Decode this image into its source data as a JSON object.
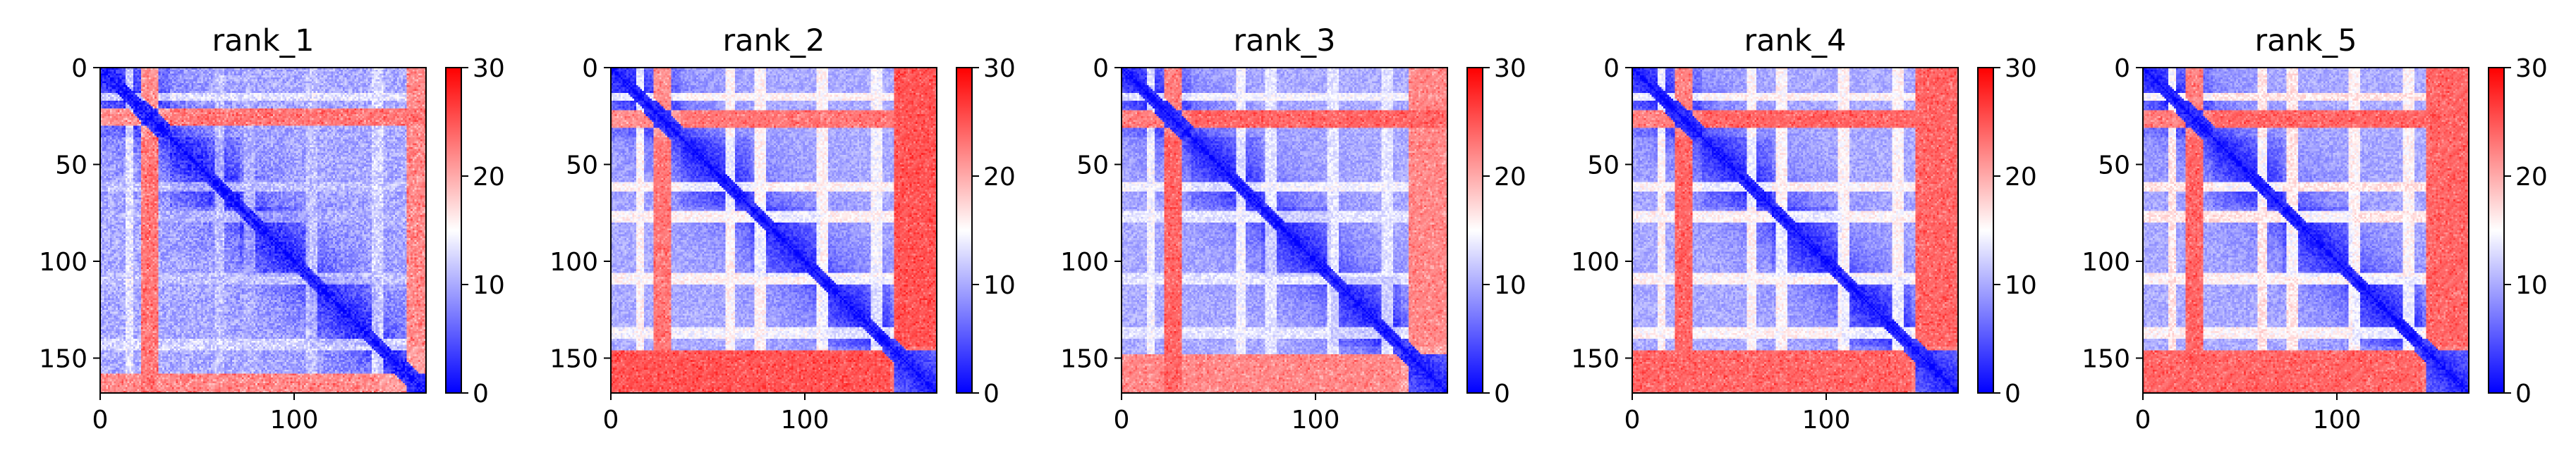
{
  "chart_data": [
    {
      "type": "heatmap",
      "title": "rank_1",
      "xlabel": "",
      "ylabel": "",
      "xlim": [
        0,
        168
      ],
      "ylim": [
        168,
        0
      ],
      "xticks": [
        0,
        100
      ],
      "yticks": [
        0,
        50,
        100,
        150
      ],
      "colorbar": {
        "cmap": "bwr",
        "range": [
          0,
          30
        ],
        "ticks": [
          0,
          10,
          20,
          30
        ]
      },
      "matrix_size": 168,
      "structure": {
        "noise": 0.85,
        "high_bands": [
          [
            21,
            30,
            23
          ],
          [
            158,
            168,
            22
          ]
        ],
        "gaps": [
          [
            13,
            17,
            12
          ],
          [
            59,
            64,
            10
          ],
          [
            74,
            80,
            9
          ],
          [
            106,
            112,
            10
          ],
          [
            140,
            146,
            11
          ]
        ]
      }
    },
    {
      "type": "heatmap",
      "title": "rank_2",
      "xlabel": "",
      "ylabel": "",
      "xlim": [
        0,
        168
      ],
      "ylim": [
        168,
        0
      ],
      "xticks": [
        0,
        100
      ],
      "yticks": [
        0,
        50,
        100,
        150
      ],
      "colorbar": {
        "cmap": "bwr",
        "range": [
          0,
          30
        ],
        "ticks": [
          0,
          10,
          20,
          30
        ]
      },
      "matrix_size": 168,
      "structure": {
        "noise": 0.6,
        "high_bands": [
          [
            22,
            31,
            23
          ],
          [
            146,
            168,
            25
          ]
        ],
        "gaps": [
          [
            13,
            17,
            14
          ],
          [
            59,
            64,
            14
          ],
          [
            74,
            80,
            14
          ],
          [
            106,
            112,
            14
          ],
          [
            134,
            140,
            13
          ]
        ]
      }
    },
    {
      "type": "heatmap",
      "title": "rank_3",
      "xlabel": "",
      "ylabel": "",
      "xlim": [
        0,
        168
      ],
      "ylim": [
        168,
        0
      ],
      "xticks": [
        0,
        100
      ],
      "yticks": [
        0,
        50,
        100,
        150
      ],
      "colorbar": {
        "cmap": "bwr",
        "range": [
          0,
          30
        ],
        "ticks": [
          0,
          10,
          20,
          30
        ]
      },
      "matrix_size": 168,
      "structure": {
        "noise": 0.6,
        "high_bands": [
          [
            22,
            31,
            24
          ],
          [
            148,
            168,
            22
          ]
        ],
        "gaps": [
          [
            13,
            17,
            13
          ],
          [
            59,
            64,
            13
          ],
          [
            74,
            80,
            12
          ],
          [
            106,
            112,
            12
          ],
          [
            134,
            140,
            12
          ]
        ]
      }
    },
    {
      "type": "heatmap",
      "title": "rank_4",
      "xlabel": "",
      "ylabel": "",
      "xlim": [
        0,
        168
      ],
      "ylim": [
        168,
        0
      ],
      "xticks": [
        0,
        100
      ],
      "yticks": [
        0,
        50,
        100,
        150
      ],
      "colorbar": {
        "cmap": "bwr",
        "range": [
          0,
          30
        ],
        "ticks": [
          0,
          10,
          20,
          30
        ]
      },
      "matrix_size": 168,
      "structure": {
        "noise": 0.6,
        "high_bands": [
          [
            22,
            31,
            24
          ],
          [
            146,
            168,
            24
          ]
        ],
        "gaps": [
          [
            13,
            17,
            14
          ],
          [
            59,
            64,
            14
          ],
          [
            74,
            80,
            14
          ],
          [
            106,
            112,
            14
          ],
          [
            134,
            140,
            14
          ]
        ]
      }
    },
    {
      "type": "heatmap",
      "title": "rank_5",
      "xlabel": "",
      "ylabel": "",
      "xlim": [
        0,
        168
      ],
      "ylim": [
        168,
        0
      ],
      "xticks": [
        0,
        100
      ],
      "yticks": [
        0,
        50,
        100,
        150
      ],
      "colorbar": {
        "cmap": "bwr",
        "range": [
          0,
          30
        ],
        "ticks": [
          0,
          10,
          20,
          30
        ]
      },
      "matrix_size": 168,
      "structure": {
        "noise": 0.6,
        "high_bands": [
          [
            22,
            31,
            24
          ],
          [
            146,
            168,
            24
          ]
        ],
        "gaps": [
          [
            13,
            17,
            15
          ],
          [
            59,
            64,
            15
          ],
          [
            74,
            80,
            15
          ],
          [
            106,
            112,
            14
          ],
          [
            134,
            140,
            14
          ]
        ]
      }
    }
  ]
}
